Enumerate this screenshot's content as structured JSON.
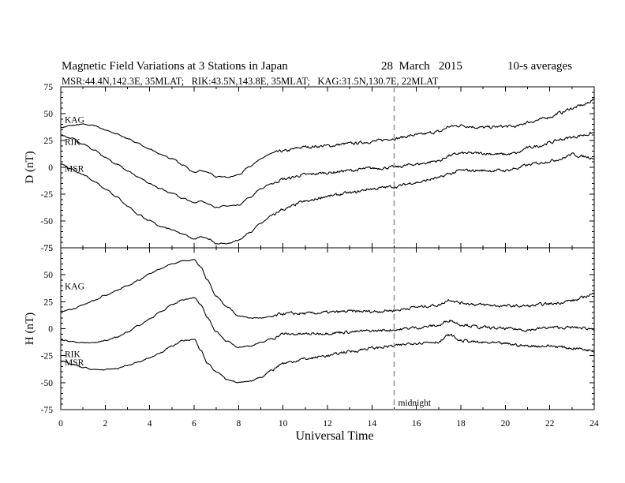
{
  "chart_data": {
    "type": "line",
    "title": "Magnetic Field Variations at 3 Stations in Japan",
    "date": "28  March   2015",
    "averaging": "10-s averages",
    "subtitle": "MSR:44.4N,142.3E, 35MLAT;   RIK:43.5N,143.8E, 35MLAT;   KAG:31.5N,130.7E, 22MLAT",
    "xlabel": "Universal Time",
    "xlim": [
      0,
      24
    ],
    "xticks": [
      0,
      2,
      4,
      6,
      8,
      10,
      12,
      14,
      16,
      18,
      20,
      22,
      24
    ],
    "marker": {
      "x": 15,
      "label": "midnight"
    },
    "panels": [
      {
        "ylabel": "D (nT)",
        "ylim": [
          -75,
          75
        ],
        "yticks": [
          75,
          50,
          25,
          0,
          -25,
          -50,
          -75
        ],
        "series": [
          {
            "name": "KAG",
            "x": [
              0,
              0.5,
              1,
              1.5,
              2,
              2.5,
              3,
              3.5,
              4,
              4.5,
              5,
              5.5,
              6,
              6.3,
              6.7,
              7,
              7.5,
              8,
              8.5,
              9,
              9.5,
              10,
              11,
              12,
              13,
              14,
              15,
              16,
              17,
              17.5,
              18,
              19,
              20,
              20.5,
              21,
              21.5,
              22,
              22.5,
              23,
              23.5,
              24
            ],
            "y": [
              37,
              39,
              40,
              39,
              35,
              31,
              27,
              22,
              17,
              12,
              8,
              2,
              -5,
              -3,
              -5,
              -9,
              -9,
              -7,
              1,
              8,
              13,
              15,
              19,
              20,
              22,
              24,
              27,
              30,
              33,
              38,
              39,
              37,
              38,
              38,
              42,
              44,
              47,
              51,
              55,
              58,
              63
            ]
          },
          {
            "name": "RIK",
            "x": [
              0,
              0.5,
              1,
              1.5,
              2,
              2.5,
              3,
              3.5,
              4,
              4.5,
              5,
              5.5,
              6,
              6.3,
              6.7,
              7,
              7.5,
              8,
              8.5,
              9,
              9.5,
              10,
              11,
              12,
              13,
              14,
              15,
              16,
              17,
              17.5,
              18,
              19,
              20,
              20.5,
              21,
              21.5,
              22,
              22.5,
              23,
              23.5,
              24
            ],
            "y": [
              30,
              27,
              22,
              16,
              9,
              3,
              -3,
              -9,
              -15,
              -20,
              -24,
              -29,
              -33,
              -31,
              -35,
              -37,
              -36,
              -35,
              -28,
              -20,
              -15,
              -11,
              -7,
              -5,
              -3,
              -1,
              0,
              3,
              6,
              11,
              13,
              13,
              12,
              13,
              18,
              20,
              23,
              26,
              28,
              30,
              32
            ]
          },
          {
            "name": "MSR",
            "x": [
              0,
              0.5,
              1,
              1.5,
              2,
              2.5,
              3,
              3.5,
              4,
              4.5,
              5,
              5.5,
              6,
              6.3,
              6.7,
              7,
              7.5,
              8,
              8.5,
              9,
              9.5,
              10,
              11,
              12,
              13,
              14,
              15,
              16,
              17,
              17.5,
              18,
              19,
              20,
              20.5,
              21,
              21.5,
              22,
              22.5,
              23,
              23.5,
              24
            ],
            "y": [
              3,
              -2,
              -7,
              -13,
              -20,
              -27,
              -36,
              -44,
              -50,
              -55,
              -58,
              -62,
              -67,
              -65,
              -67,
              -71,
              -71,
              -68,
              -61,
              -52,
              -45,
              -39,
              -32,
              -27,
              -24,
              -20,
              -18,
              -14,
              -10,
              -6,
              -3,
              -3,
              -3,
              -1,
              2,
              4,
              6,
              8,
              12,
              10,
              9
            ]
          }
        ]
      },
      {
        "ylabel": "H (nT)",
        "ylim": [
          -75,
          75
        ],
        "yticks": [
          75,
          50,
          25,
          0,
          -25,
          -50,
          -75
        ],
        "series": [
          {
            "name": "KAG",
            "x": [
              0,
              0.5,
              1,
              1.5,
              2,
              2.5,
              3,
              3.5,
              4,
              4.5,
              5,
              5.5,
              6,
              6.3,
              6.6,
              7,
              7.5,
              8,
              8.5,
              9,
              9.5,
              10,
              11,
              12,
              13,
              14,
              15,
              16,
              17,
              17.5,
              18,
              19,
              20,
              21,
              22,
              23,
              24
            ],
            "y": [
              16,
              18,
              22,
              26,
              31,
              35,
              40,
              45,
              51,
              56,
              60,
              63,
              64,
              57,
              45,
              30,
              20,
              12,
              10,
              10,
              11,
              14,
              14,
              15,
              16,
              16,
              17,
              20,
              22,
              27,
              24,
              22,
              21,
              21,
              23,
              26,
              32
            ]
          },
          {
            "name": "RIK",
            "x": [
              0,
              0.5,
              1,
              1.5,
              2,
              2.5,
              3,
              3.5,
              4,
              4.5,
              5,
              5.5,
              6,
              6.3,
              6.6,
              7,
              7.5,
              8,
              8.5,
              9,
              9.5,
              10,
              11,
              12,
              13,
              14,
              15,
              16,
              17,
              17.5,
              18,
              19,
              20,
              21,
              22,
              23,
              24
            ],
            "y": [
              -10,
              -12,
              -13,
              -13,
              -11,
              -8,
              -3,
              3,
              9,
              16,
              22,
              27,
              29,
              22,
              10,
              -3,
              -12,
              -17,
              -16,
              -13,
              -9,
              -5,
              -5,
              -4,
              -3,
              -2,
              -1,
              1,
              3,
              8,
              4,
              1,
              0,
              -1,
              1,
              1,
              0
            ]
          },
          {
            "name": "MSR",
            "x": [
              0,
              0.5,
              1,
              1.5,
              2,
              2.5,
              3,
              3.5,
              4,
              4.5,
              5,
              5.5,
              6,
              6.3,
              6.6,
              7,
              7.5,
              8,
              8.5,
              9,
              9.5,
              10,
              11,
              12,
              13,
              14,
              15,
              16,
              17,
              17.5,
              18,
              19,
              20,
              21,
              22,
              23,
              24
            ],
            "y": [
              -30,
              -33,
              -36,
              -38,
              -38,
              -37,
              -34,
              -31,
              -27,
              -22,
              -16,
              -11,
              -10,
              -20,
              -32,
              -40,
              -47,
              -50,
              -49,
              -45,
              -38,
              -32,
              -28,
              -25,
              -21,
              -18,
              -16,
              -13,
              -12,
              -6,
              -11,
              -13,
              -14,
              -16,
              -16,
              -18,
              -20
            ]
          }
        ]
      }
    ]
  }
}
